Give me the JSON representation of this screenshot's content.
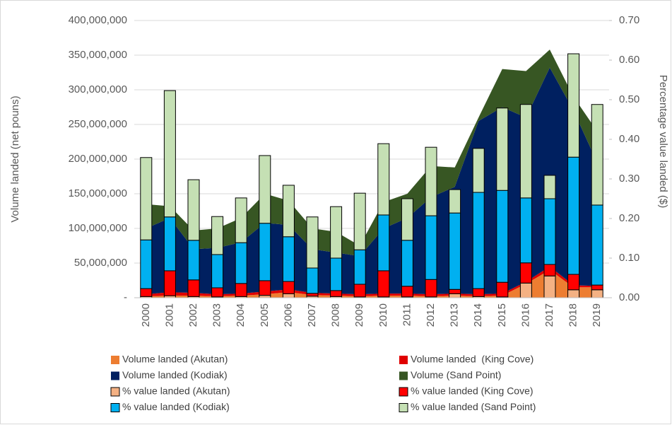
{
  "chart_data": {
    "type": "stacked-area-bar",
    "y_label": "Volume landed (net pouns)",
    "y2_label": "Percentage value landed ($)",
    "categories": [
      "2000",
      "2001",
      "2002",
      "2003",
      "2004",
      "2005",
      "2006",
      "2007",
      "2008",
      "2009",
      "2010",
      "2011",
      "2012",
      "2013",
      "2014",
      "2015",
      "2016",
      "2017",
      "2018",
      "2019"
    ],
    "ylim": [
      0,
      400000000
    ],
    "yticks": [
      {
        "value": 0,
        "label": "-"
      },
      {
        "value": 50000000,
        "label": "50,000,000"
      },
      {
        "value": 100000000,
        "label": "100,000,000"
      },
      {
        "value": 150000000,
        "label": "150,000,000"
      },
      {
        "value": 200000000,
        "label": "200,000,000"
      },
      {
        "value": 250000000,
        "label": "250,000,000"
      },
      {
        "value": 300000000,
        "label": "300,000,000"
      },
      {
        "value": 350000000,
        "label": "350,000,000"
      },
      {
        "value": 400000000,
        "label": "400,000,000"
      }
    ],
    "y2lim": [
      0,
      0.7
    ],
    "y2ticks": [
      {
        "value": 0,
        "label": "0.00"
      },
      {
        "value": 0.1,
        "label": "0.10"
      },
      {
        "value": 0.2,
        "label": "0.20"
      },
      {
        "value": 0.3,
        "label": "0.30"
      },
      {
        "value": 0.4,
        "label": "0.40"
      },
      {
        "value": 0.5,
        "label": "0.50"
      },
      {
        "value": 0.6,
        "label": "0.60"
      },
      {
        "value": 0.7,
        "label": "0.70"
      }
    ],
    "grid": true,
    "series": [
      {
        "name": "Volume landed (Akutan)",
        "type": "area",
        "color": "#ED7D31",
        "values": [
          2000000,
          3000000,
          3000000,
          2000000,
          3000000,
          5000000,
          8000000,
          4000000,
          3000000,
          2000000,
          3000000,
          3000000,
          2000000,
          3000000,
          2000000,
          3000000,
          20000000,
          40000000,
          15000000,
          15000000
        ]
      },
      {
        "name": "Volume landed  (King Cove)",
        "type": "area",
        "color": "#E00000",
        "values": [
          3000000,
          5000000,
          4000000,
          3000000,
          3000000,
          4000000,
          4000000,
          3000000,
          3000000,
          3000000,
          3000000,
          3000000,
          3000000,
          3000000,
          3000000,
          3000000,
          3000000,
          5000000,
          3000000,
          2000000
        ]
      },
      {
        "name": "Volume landed (Kodiak)",
        "type": "area",
        "color": "#002060",
        "values": [
          95000000,
          107000000,
          63000000,
          67000000,
          74000000,
          99000000,
          93000000,
          63000000,
          59000000,
          55000000,
          94000000,
          109000000,
          140000000,
          154000000,
          250000000,
          269000000,
          237000000,
          287000000,
          252000000,
          178000000
        ]
      },
      {
        "name": "Volume (Sand Point)",
        "type": "area",
        "color": "#375623",
        "values": [
          35000000,
          17000000,
          27000000,
          28000000,
          35000000,
          42000000,
          35000000,
          30000000,
          30000000,
          15000000,
          38000000,
          35000000,
          45000000,
          28000000,
          5000000,
          55000000,
          67000000,
          26000000,
          20000000,
          45000000
        ]
      },
      {
        "name": "% value landed (Akutan)",
        "type": "bar",
        "axis": "y2",
        "color": "#F4B183",
        "values": [
          0.003,
          0.005,
          0.003,
          0.002,
          0.003,
          0.006,
          0.01,
          0.004,
          0.003,
          0.002,
          0.002,
          0.002,
          0.002,
          0.01,
          0.003,
          0.002,
          0.037,
          0.055,
          0.02,
          0.02
        ]
      },
      {
        "name": "% value landed (King Cove)",
        "type": "bar",
        "axis": "y2",
        "color": "#FF0000",
        "values": [
          0.02,
          0.063,
          0.042,
          0.023,
          0.033,
          0.037,
          0.031,
          0.007,
          0.015,
          0.032,
          0.066,
          0.027,
          0.044,
          0.011,
          0.02,
          0.037,
          0.051,
          0.029,
          0.039,
          0.012
        ]
      },
      {
        "name": "% value landed (Kodiak)",
        "type": "bar",
        "axis": "y2",
        "color": "#00B0F0",
        "values": [
          0.123,
          0.136,
          0.1,
          0.084,
          0.103,
          0.145,
          0.113,
          0.064,
          0.082,
          0.087,
          0.141,
          0.116,
          0.161,
          0.193,
          0.243,
          0.232,
          0.164,
          0.166,
          0.296,
          0.202
        ]
      },
      {
        "name": "% value landed (Sand Point)",
        "type": "bar",
        "axis": "y2",
        "color": "#C5E0B4",
        "values": [
          0.208,
          0.319,
          0.153,
          0.096,
          0.113,
          0.171,
          0.13,
          0.129,
          0.13,
          0.143,
          0.18,
          0.105,
          0.173,
          0.059,
          0.111,
          0.208,
          0.236,
          0.059,
          0.261,
          0.254
        ]
      }
    ]
  }
}
